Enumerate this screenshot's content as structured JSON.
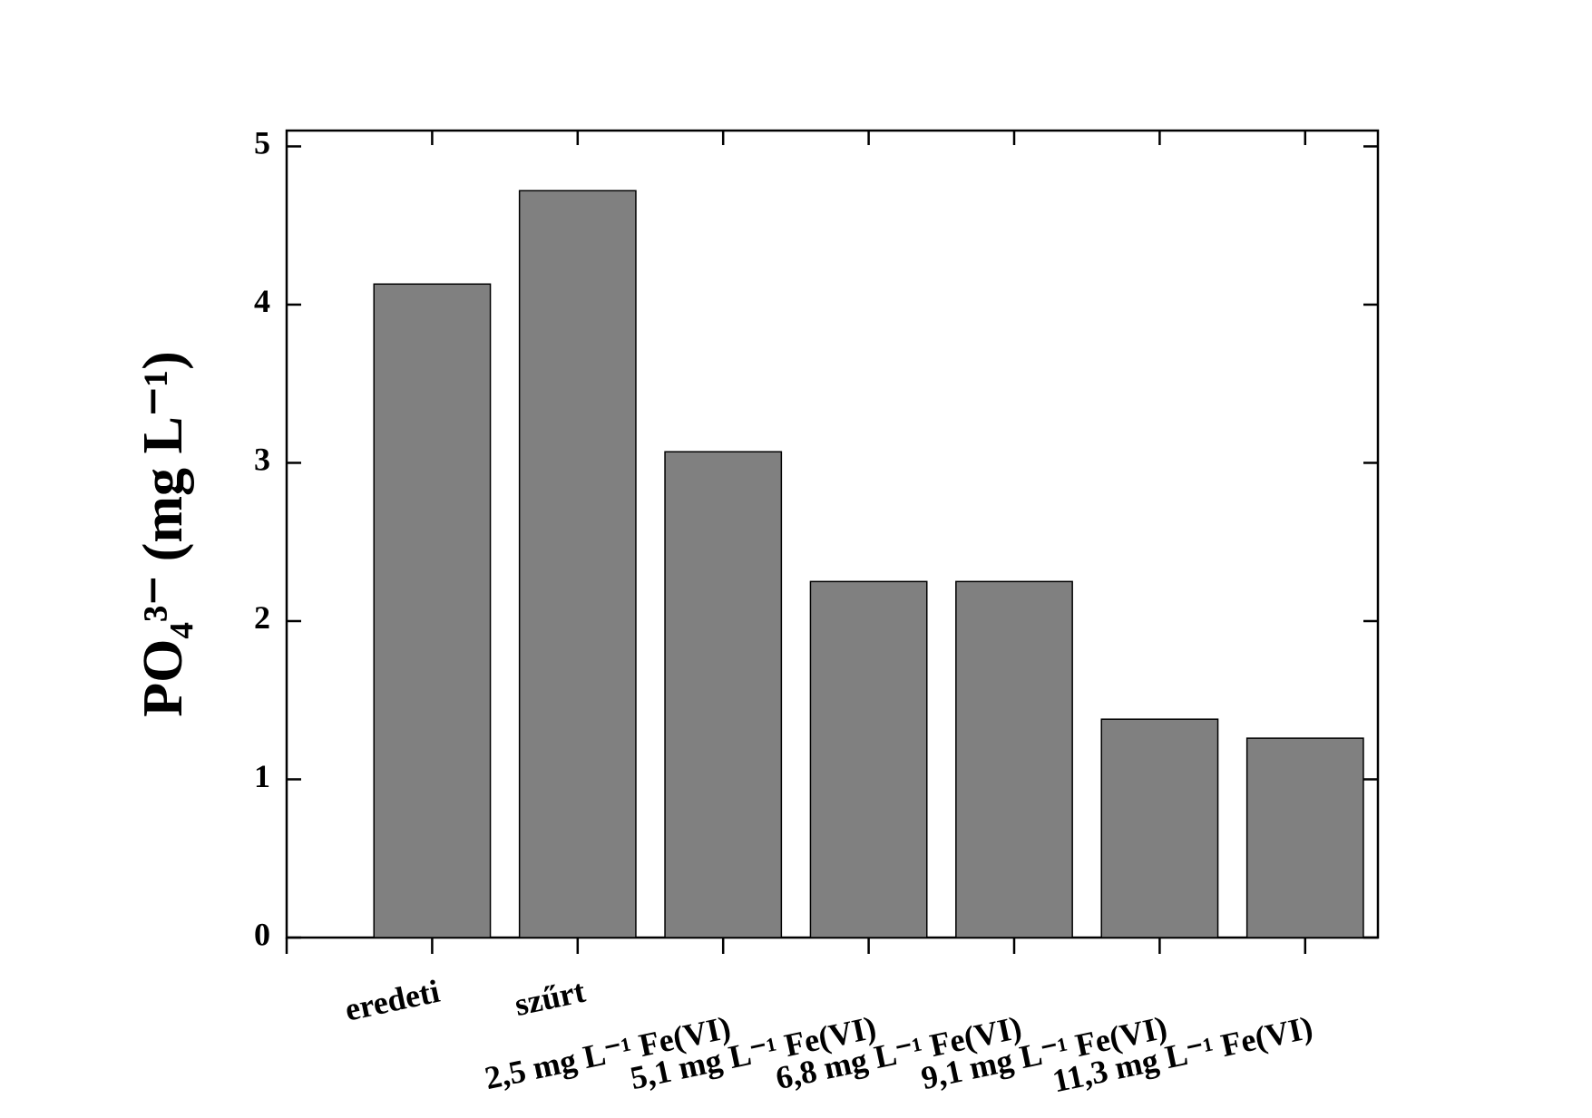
{
  "chart_data": {
    "type": "bar",
    "y_label": "PO₄³⁻ (mg L⁻¹)",
    "categories": [
      "eredeti",
      "szűrt",
      "2,5 mg L⁻¹ Fe(VI)",
      "5,1 mg L⁻¹ Fe(VI)",
      "6,8 mg L⁻¹ Fe(VI)",
      "9,1 mg L⁻¹ Fe(VI)",
      "11,3 mg L⁻¹ Fe(VI)"
    ],
    "values": [
      4.13,
      4.72,
      3.07,
      2.25,
      2.25,
      1.38,
      1.26
    ],
    "color": "#808080",
    "ylim": [
      0,
      5.1
    ],
    "yticks": [
      0,
      1,
      2,
      3,
      4,
      5
    ],
    "grid": false
  }
}
